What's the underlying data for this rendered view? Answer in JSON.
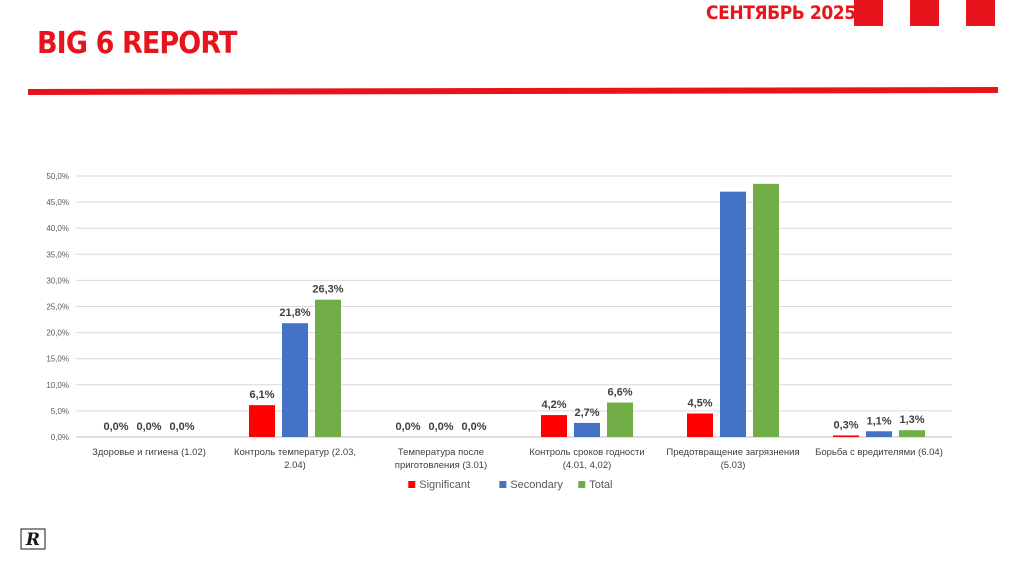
{
  "header": {
    "title": "BIG 6 REPORT",
    "date": "СЕНТЯБРЬ 2025",
    "logo_text": "R"
  },
  "colors": {
    "brand_red": "#e8141b",
    "significant": "#ff0000",
    "secondary": "#4472c4",
    "total": "#70ad47"
  },
  "chart_data": {
    "type": "bar",
    "title": "",
    "xlabel": "",
    "ylabel": "",
    "ylim": [
      0,
      50
    ],
    "yticks": [
      "0,0%",
      "5,0%",
      "10,0%",
      "15,0%",
      "20,0%",
      "25,0%",
      "30,0%",
      "35,0%",
      "40,0%",
      "45,0%",
      "50,0%"
    ],
    "grid": true,
    "legend_position": "bottom",
    "categories": [
      [
        "Здоровье и гигиена (1.02)"
      ],
      [
        "Контроль температур (2.03,",
        "2.04)"
      ],
      [
        "Температура после",
        "приготовления (3.01)"
      ],
      [
        "Контроль сроков годности",
        "(4.01, 4,02)"
      ],
      [
        "Предотвращение загрязнения",
        "(5.03)"
      ],
      [
        "Борьба с вредителями (6.04)"
      ]
    ],
    "series": [
      {
        "name": "Significant",
        "color": "#ff0000",
        "values": [
          0.0,
          6.1,
          0.0,
          4.2,
          4.5,
          0.3
        ],
        "labels": [
          "0,0%",
          "6,1%",
          "0,0%",
          "4,2%",
          "4,5%",
          "0,3%"
        ]
      },
      {
        "name": "Secondary",
        "color": "#4472c4",
        "values": [
          0.0,
          21.8,
          0.0,
          2.7,
          47.0,
          1.1
        ],
        "labels": [
          "0,0%",
          "21,8%",
          "0,0%",
          "2,7%",
          "",
          "1,1%"
        ]
      },
      {
        "name": "Total",
        "color": "#70ad47",
        "values": [
          0.0,
          26.3,
          0.0,
          6.6,
          48.5,
          1.3
        ],
        "labels": [
          "0,0%",
          "26,3%",
          "0,0%",
          "6,6%",
          "",
          "1,3%"
        ]
      }
    ]
  }
}
